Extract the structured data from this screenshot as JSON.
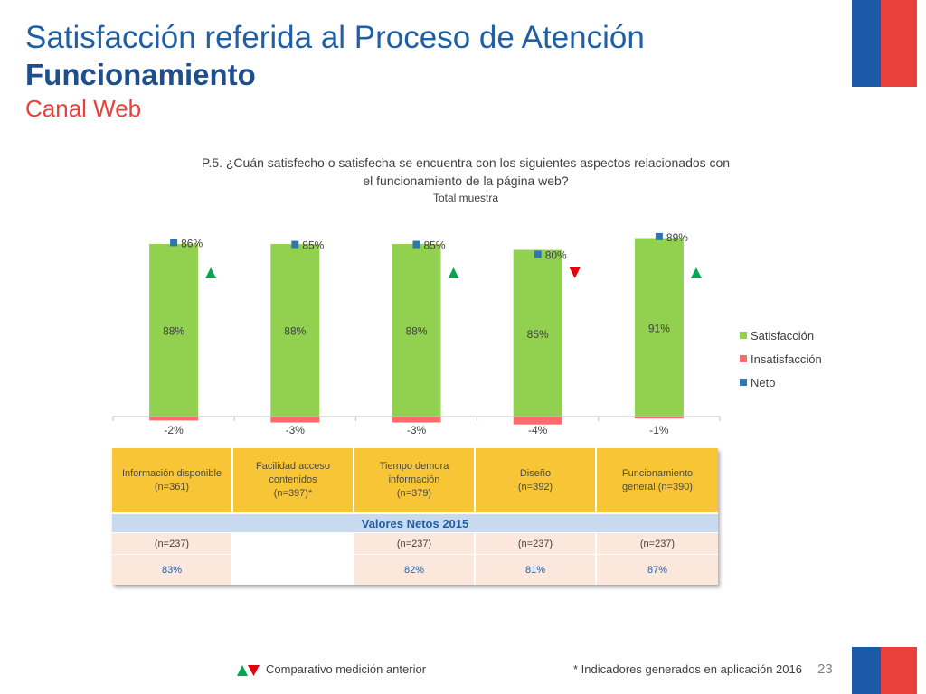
{
  "header": {
    "title": "Satisfacción referida al Proceso de Atención",
    "subtitle": "Funcionamiento",
    "channel": "Canal Web"
  },
  "chart_header": {
    "question_line1": "P.5. ¿Cuán satisfecho o satisfecha se encuentra con los siguientes aspectos relacionados con",
    "question_line2": "el funcionamiento de la página web?",
    "sample": "Total muestra"
  },
  "chart_data": {
    "type": "bar",
    "categories": [
      "Información disponible (n=361)",
      "Facilidad acceso contenidos (n=397)*",
      "Tiempo demora información (n=379)",
      "Diseño (n=392)",
      "Funcionamiento general (n=390)"
    ],
    "series": [
      {
        "name": "Satisfacción",
        "values": [
          88,
          88,
          88,
          85,
          91
        ],
        "labels": [
          "88%",
          "88%",
          "88%",
          "85%",
          "91%"
        ],
        "color": "#92d050"
      },
      {
        "name": "Insatisfacción",
        "values": [
          -2,
          -3,
          -3,
          -4,
          -1
        ],
        "labels": [
          "-2%",
          "-3%",
          "-3%",
          "-4%",
          "-1%"
        ],
        "color": "#ff6b6b"
      },
      {
        "name": "Neto",
        "values": [
          86,
          85,
          85,
          80,
          89
        ],
        "labels": [
          "86%",
          "85%",
          "85%",
          "80%",
          "89%"
        ],
        "color": "#2e75b6"
      }
    ],
    "comparison": [
      "up",
      null,
      "up",
      "down",
      "up"
    ],
    "ylim": [
      -6,
      95
    ],
    "legend_position": "right",
    "grid": false
  },
  "legend": {
    "items": [
      {
        "label": "Satisfacción",
        "color": "#92d050"
      },
      {
        "label": "Insatisfacción",
        "color": "#ff6b6b"
      },
      {
        "label": "Neto",
        "color": "#2e75b6"
      }
    ]
  },
  "table": {
    "headers": [
      [
        "Información disponible",
        "(n=361)"
      ],
      [
        "Facilidad acceso",
        "contenidos",
        "(n=397)*"
      ],
      [
        "Tiempo demora",
        "información",
        "(n=379)"
      ],
      [
        "Diseño",
        "(n=392)"
      ],
      [
        "Funcionamiento",
        "general (n=390)"
      ]
    ],
    "band_title": "Valores Netos 2015",
    "n_row": [
      "(n=237)",
      "",
      "(n=237)",
      "(n=237)",
      "(n=237)"
    ],
    "pct_row": [
      "83%",
      "",
      "82%",
      "81%",
      "87%"
    ]
  },
  "footer": {
    "comparison_note": "Comparativo medición anterior",
    "indicator_note": "* Indicadores generados en aplicación 2016",
    "page_number": "23"
  },
  "colors": {
    "up_arrow": "#00a651",
    "down_arrow": "#e3000f",
    "brand_blue": "#1b5aa8",
    "brand_red": "#e8413c"
  }
}
